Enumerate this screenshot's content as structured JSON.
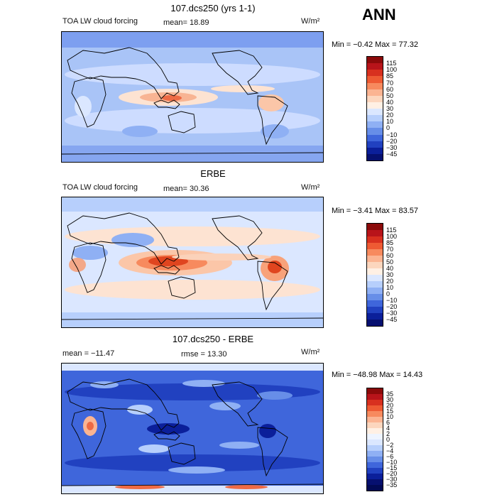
{
  "season": "ANN",
  "panels": [
    {
      "title": "107.dcs250 (yrs 1-1)",
      "left_text": "TOA LW cloud forcing",
      "mid_text": "mean=  18.89",
      "units": "W/m²",
      "minmax": "Min =  −0.42 Max =  77.32",
      "colorbar": {
        "labels": [
          "115",
          "100",
          "85",
          "70",
          "60",
          "50",
          "40",
          "30",
          "20",
          "10",
          "0",
          "−10",
          "−20",
          "−30",
          "−45"
        ],
        "colors": [
          "#8b0a0a",
          "#b8141a",
          "#d8301f",
          "#ee5a33",
          "#f78a5e",
          "#fbb492",
          "#fcd6be",
          "#fff0e4",
          "#dbe7ff",
          "#b7cffc",
          "#8fb0f4",
          "#678ee8",
          "#3f66db",
          "#2141c0",
          "#0b1f9a",
          "#061070"
        ]
      }
    },
    {
      "title": "ERBE",
      "left_text": "TOA LW cloud forcing",
      "mid_text": "mean=  30.36",
      "units": "W/m²",
      "minmax": "Min =  −3.41 Max =  83.57",
      "colorbar": {
        "labels": [
          "115",
          "100",
          "85",
          "70",
          "60",
          "50",
          "40",
          "30",
          "20",
          "10",
          "0",
          "−10",
          "−20",
          "−30",
          "−45"
        ],
        "colors": [
          "#8b0a0a",
          "#b8141a",
          "#d8301f",
          "#ee5a33",
          "#f78a5e",
          "#fbb492",
          "#fcd6be",
          "#fff0e4",
          "#dbe7ff",
          "#b7cffc",
          "#8fb0f4",
          "#678ee8",
          "#3f66db",
          "#2141c0",
          "#0b1f9a",
          "#061070"
        ]
      }
    },
    {
      "title": "107.dcs250 - ERBE",
      "left_text": "mean =  −11.47",
      "mid_text": "rmse =  13.30",
      "units": "W/m²",
      "minmax": "Min =  −48.98 Max =  14.43",
      "colorbar": {
        "labels": [
          "35",
          "30",
          "20",
          "15",
          "10",
          "6",
          "4",
          "2",
          "0",
          "−2",
          "−4",
          "−6",
          "−10",
          "−15",
          "−20",
          "−30",
          "−35"
        ],
        "colors": [
          "#8b0a0a",
          "#b8141a",
          "#d8301f",
          "#ee5a33",
          "#f78a5e",
          "#fbb492",
          "#fcd6be",
          "#fff0e4",
          "#eef4ff",
          "#dbe7ff",
          "#b7cffc",
          "#8fb0f4",
          "#678ee8",
          "#3f66db",
          "#2141c0",
          "#0b1f9a",
          "#061070",
          "#020a55"
        ]
      }
    }
  ]
}
